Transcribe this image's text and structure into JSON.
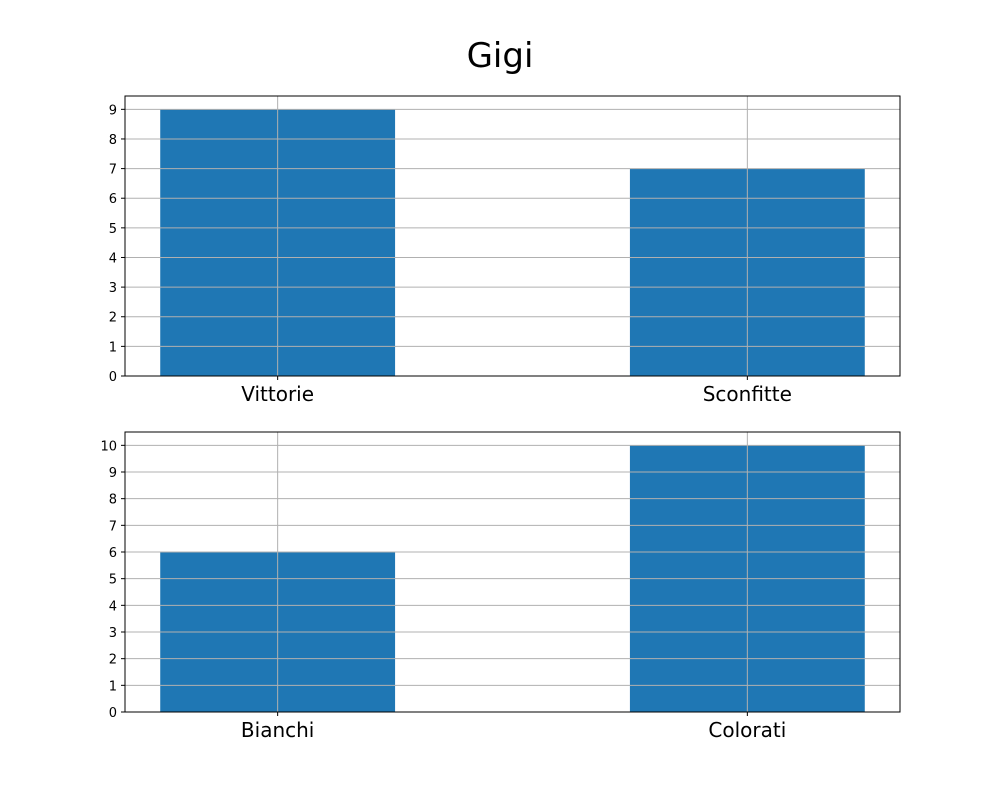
{
  "title": "Gigi",
  "colors": {
    "bar": "#1f77b4",
    "grid": "#b0b0b0",
    "axes": "#000000"
  },
  "chart_data": [
    {
      "type": "bar",
      "categories": [
        "Vittorie",
        "Sconfitte"
      ],
      "values": [
        9,
        7
      ],
      "ylim": [
        0,
        9.45
      ],
      "yticks": [
        0,
        1,
        2,
        3,
        4,
        5,
        6,
        7,
        8,
        9
      ],
      "grid": true
    },
    {
      "type": "bar",
      "categories": [
        "Bianchi",
        "Colorati"
      ],
      "values": [
        6,
        10
      ],
      "ylim": [
        0,
        10.5
      ],
      "yticks": [
        0,
        1,
        2,
        3,
        4,
        5,
        6,
        7,
        8,
        9,
        10
      ],
      "grid": true
    }
  ]
}
